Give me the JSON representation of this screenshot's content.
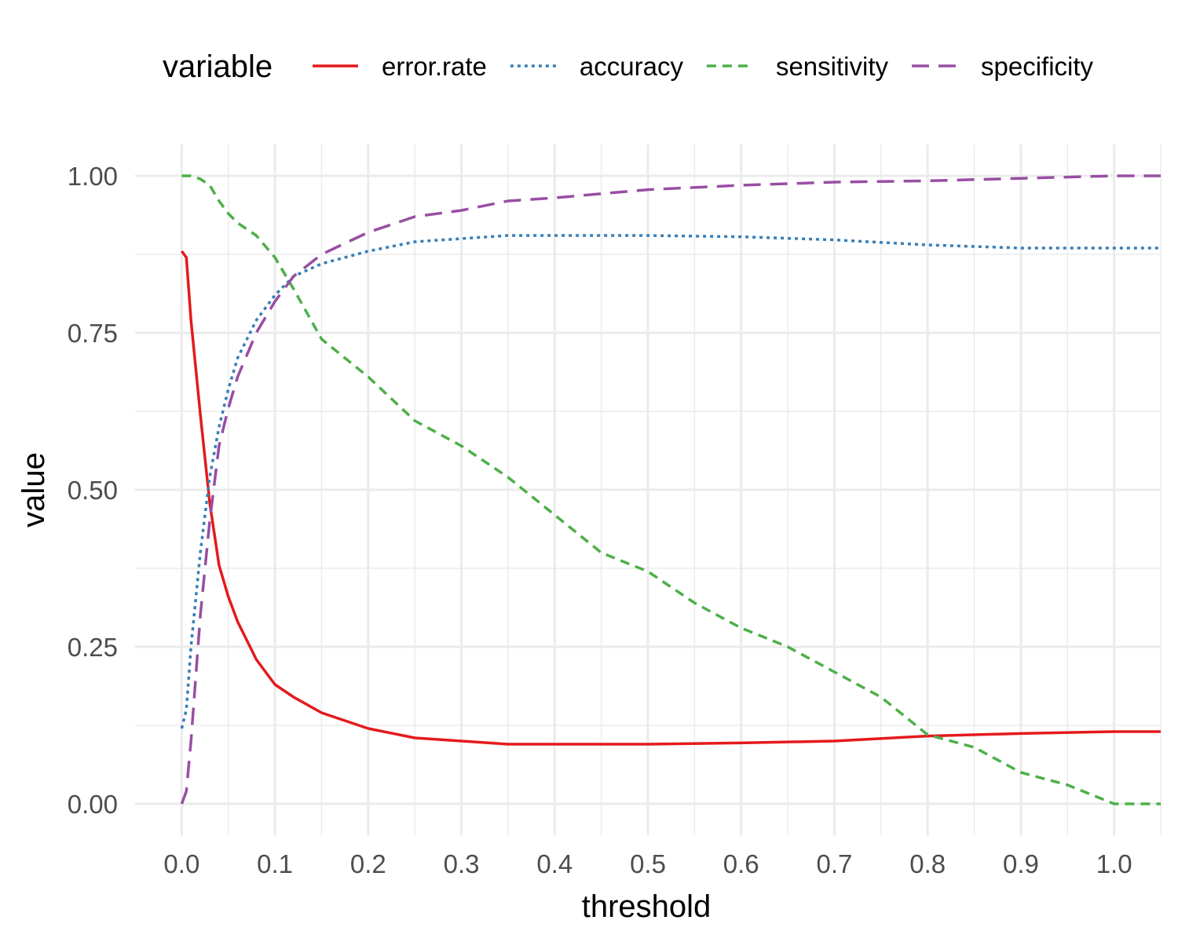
{
  "chart_data": {
    "type": "line",
    "xlabel": "threshold",
    "ylabel": "value",
    "xlim": [
      -0.05,
      1.05
    ],
    "ylim": [
      -0.05,
      1.05
    ],
    "x_ticks": [
      0.0,
      0.1,
      0.2,
      0.3,
      0.4,
      0.5,
      0.6,
      0.7,
      0.8,
      0.9,
      1.0
    ],
    "x_tick_labels": [
      "0.0",
      "0.1",
      "0.2",
      "0.3",
      "0.4",
      "0.5",
      "0.6",
      "0.7",
      "0.8",
      "0.9",
      "1.0"
    ],
    "y_ticks": [
      0.0,
      0.25,
      0.5,
      0.75,
      1.0
    ],
    "y_tick_labels": [
      "0.00",
      "0.25",
      "0.50",
      "0.75",
      "1.00"
    ],
    "grid": true,
    "legend": {
      "title": "variable",
      "position": "top"
    },
    "series": [
      {
        "name": "error.rate",
        "color": "#e41a1c",
        "dash": "solid",
        "x": [
          0.0,
          0.005,
          0.01,
          0.02,
          0.03,
          0.04,
          0.05,
          0.06,
          0.07,
          0.08,
          0.1,
          0.12,
          0.15,
          0.2,
          0.25,
          0.3,
          0.35,
          0.4,
          0.45,
          0.5,
          0.6,
          0.7,
          0.8,
          0.9,
          1.0,
          1.05
        ],
        "y": [
          0.88,
          0.87,
          0.77,
          0.62,
          0.48,
          0.38,
          0.33,
          0.29,
          0.26,
          0.23,
          0.19,
          0.17,
          0.145,
          0.12,
          0.105,
          0.1,
          0.095,
          0.095,
          0.095,
          0.095,
          0.097,
          0.1,
          0.108,
          0.112,
          0.115,
          0.115
        ]
      },
      {
        "name": "accuracy",
        "color": "#377eb8",
        "dash": "dotted",
        "x": [
          0.0,
          0.005,
          0.01,
          0.02,
          0.03,
          0.04,
          0.05,
          0.06,
          0.08,
          0.1,
          0.12,
          0.15,
          0.2,
          0.25,
          0.3,
          0.35,
          0.4,
          0.5,
          0.6,
          0.7,
          0.8,
          0.9,
          1.0,
          1.05
        ],
        "y": [
          0.12,
          0.15,
          0.25,
          0.4,
          0.52,
          0.6,
          0.66,
          0.71,
          0.77,
          0.81,
          0.84,
          0.86,
          0.88,
          0.895,
          0.9,
          0.905,
          0.905,
          0.905,
          0.903,
          0.898,
          0.89,
          0.885,
          0.885,
          0.885
        ]
      },
      {
        "name": "sensitivity",
        "color": "#4daf4a",
        "dash": "dashed",
        "x": [
          0.0,
          0.01,
          0.02,
          0.03,
          0.04,
          0.05,
          0.06,
          0.07,
          0.08,
          0.1,
          0.12,
          0.15,
          0.2,
          0.25,
          0.3,
          0.35,
          0.4,
          0.45,
          0.5,
          0.55,
          0.6,
          0.65,
          0.7,
          0.75,
          0.8,
          0.85,
          0.9,
          0.95,
          1.0,
          1.05
        ],
        "y": [
          1.0,
          1.0,
          0.995,
          0.985,
          0.96,
          0.94,
          0.925,
          0.915,
          0.905,
          0.87,
          0.82,
          0.74,
          0.68,
          0.61,
          0.57,
          0.52,
          0.46,
          0.4,
          0.37,
          0.32,
          0.28,
          0.25,
          0.21,
          0.17,
          0.11,
          0.09,
          0.05,
          0.03,
          0.0,
          0.0
        ]
      },
      {
        "name": "specificity",
        "color": "#984ea3",
        "dash": "longdash",
        "x": [
          0.0,
          0.005,
          0.01,
          0.02,
          0.03,
          0.04,
          0.05,
          0.06,
          0.08,
          0.1,
          0.12,
          0.15,
          0.2,
          0.25,
          0.3,
          0.35,
          0.4,
          0.5,
          0.6,
          0.7,
          0.8,
          0.9,
          1.0,
          1.05
        ],
        "y": [
          0.0,
          0.02,
          0.1,
          0.3,
          0.45,
          0.57,
          0.63,
          0.68,
          0.75,
          0.8,
          0.84,
          0.875,
          0.91,
          0.935,
          0.945,
          0.96,
          0.965,
          0.978,
          0.985,
          0.99,
          0.992,
          0.996,
          1.0,
          1.0
        ]
      }
    ]
  }
}
